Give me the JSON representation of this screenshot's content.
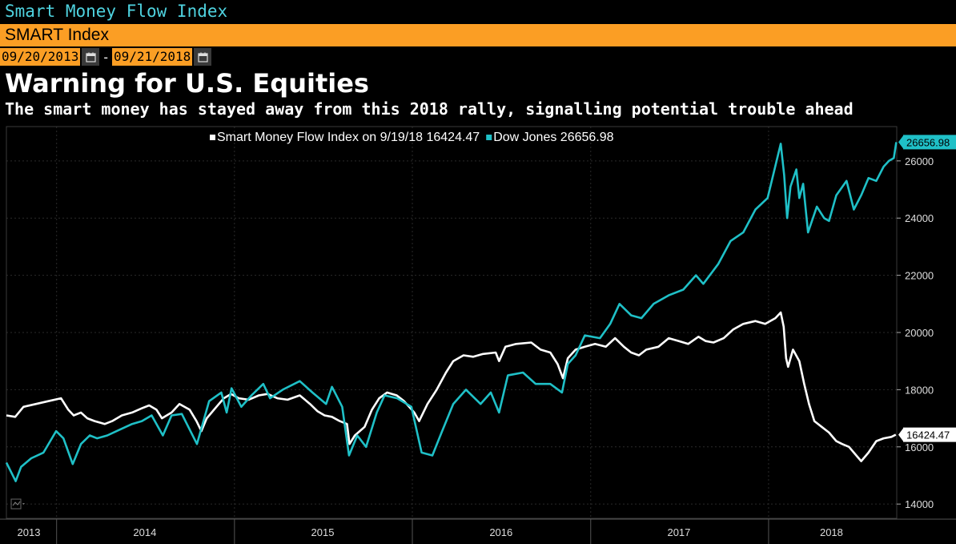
{
  "window": {
    "title": "Smart Money Flow Index"
  },
  "security": {
    "label": "SMART Index"
  },
  "date_range": {
    "start": "09/20/2013",
    "separator": "-",
    "end": "09/21/2018"
  },
  "headline": "Warning for U.S. Equities",
  "subhead": "The smart money has stayed away from this 2018 rally, signalling potential trouble ahead",
  "colors": {
    "background": "#000000",
    "smart": "#ffffff",
    "dow": "#1fc0c7",
    "accent": "#fb9e24",
    "grid": "#2a2a2a"
  },
  "chart_data": {
    "type": "line",
    "title": "",
    "xlabel": "",
    "ylabel": "",
    "ylim": [
      13500,
      27200
    ],
    "xlim": [
      "2013-09-20",
      "2018-09-21"
    ],
    "yticks": [
      14000,
      16000,
      18000,
      20000,
      22000,
      24000,
      26000
    ],
    "ytick_labels": [
      "14000",
      "16000",
      "18000",
      "20000",
      "22000",
      "24000",
      "26000"
    ],
    "year_labels": [
      {
        "label": "2013",
        "date": "2013-11-05"
      },
      {
        "label": "2014",
        "date": "2014-07-01"
      },
      {
        "label": "2015",
        "date": "2015-07-01"
      },
      {
        "label": "2016",
        "date": "2016-07-01"
      },
      {
        "label": "2017",
        "date": "2017-07-01"
      },
      {
        "label": "2018",
        "date": "2018-05-10"
      }
    ],
    "year_boundaries": [
      "2014-01-01",
      "2015-01-01",
      "2016-01-01",
      "2017-01-01",
      "2018-01-01"
    ],
    "grid": true,
    "legend": {
      "placement": "top-center",
      "entries": [
        {
          "text": "Smart Money Flow Index  on 9/19/18 16424.47",
          "color": "#ffffff"
        },
        {
          "text": "Dow Jones 26656.98",
          "color": "#1fc0c7"
        }
      ]
    },
    "last_value_labels": [
      {
        "series": "Dow Jones",
        "text": "26656.98",
        "value": 26656.98
      },
      {
        "series": "Smart Money Flow Index",
        "text": "16424.47",
        "value": 16424.47
      }
    ],
    "series": [
      {
        "name": "Smart Money Flow Index",
        "color": "#ffffff",
        "points": [
          [
            "2013-09-20",
            17100
          ],
          [
            "2013-10-08",
            17050
          ],
          [
            "2013-10-25",
            17400
          ],
          [
            "2013-11-20",
            17500
          ],
          [
            "2013-12-15",
            17600
          ],
          [
            "2014-01-10",
            17700
          ],
          [
            "2014-01-25",
            17300
          ],
          [
            "2014-02-05",
            17100
          ],
          [
            "2014-02-20",
            17200
          ],
          [
            "2014-03-05",
            17000
          ],
          [
            "2014-03-20",
            16900
          ],
          [
            "2014-04-10",
            16800
          ],
          [
            "2014-04-25",
            16900
          ],
          [
            "2014-05-15",
            17100
          ],
          [
            "2014-06-05",
            17200
          ],
          [
            "2014-06-25",
            17350
          ],
          [
            "2014-07-10",
            17450
          ],
          [
            "2014-07-25",
            17300
          ],
          [
            "2014-08-05",
            17000
          ],
          [
            "2014-08-25",
            17200
          ],
          [
            "2014-09-10",
            17500
          ],
          [
            "2014-10-01",
            17300
          ],
          [
            "2014-10-15",
            16900
          ],
          [
            "2014-10-25",
            16550
          ],
          [
            "2014-11-05",
            17000
          ],
          [
            "2014-11-25",
            17400
          ],
          [
            "2014-12-10",
            17700
          ],
          [
            "2014-12-25",
            17850
          ],
          [
            "2015-01-10",
            17700
          ],
          [
            "2015-01-30",
            17650
          ],
          [
            "2015-02-20",
            17800
          ],
          [
            "2015-03-10",
            17850
          ],
          [
            "2015-03-30",
            17700
          ],
          [
            "2015-04-20",
            17650
          ],
          [
            "2015-05-15",
            17800
          ],
          [
            "2015-06-05",
            17500
          ],
          [
            "2015-06-20",
            17250
          ],
          [
            "2015-07-05",
            17100
          ],
          [
            "2015-07-20",
            17050
          ],
          [
            "2015-08-05",
            16900
          ],
          [
            "2015-08-20",
            16800
          ],
          [
            "2015-08-25",
            16100
          ],
          [
            "2015-09-05",
            16400
          ],
          [
            "2015-09-25",
            16700
          ],
          [
            "2015-10-10",
            17300
          ],
          [
            "2015-10-25",
            17700
          ],
          [
            "2015-11-10",
            17900
          ],
          [
            "2015-11-30",
            17800
          ],
          [
            "2015-12-15",
            17600
          ],
          [
            "2016-01-05",
            17200
          ],
          [
            "2016-01-15",
            16900
          ],
          [
            "2016-02-01",
            17500
          ],
          [
            "2016-02-20",
            18000
          ],
          [
            "2016-03-10",
            18600
          ],
          [
            "2016-03-25",
            19000
          ],
          [
            "2016-04-15",
            19200
          ],
          [
            "2016-05-05",
            19150
          ],
          [
            "2016-05-25",
            19250
          ],
          [
            "2016-06-20",
            19300
          ],
          [
            "2016-06-27",
            19000
          ],
          [
            "2016-07-10",
            19500
          ],
          [
            "2016-08-01",
            19600
          ],
          [
            "2016-09-01",
            19650
          ],
          [
            "2016-09-20",
            19400
          ],
          [
            "2016-10-10",
            19300
          ],
          [
            "2016-10-25",
            18900
          ],
          [
            "2016-11-05",
            18400
          ],
          [
            "2016-11-15",
            19100
          ],
          [
            "2016-12-01",
            19400
          ],
          [
            "2016-12-20",
            19500
          ],
          [
            "2017-01-10",
            19600
          ],
          [
            "2017-02-01",
            19500
          ],
          [
            "2017-02-20",
            19800
          ],
          [
            "2017-03-10",
            19500
          ],
          [
            "2017-03-25",
            19300
          ],
          [
            "2017-04-10",
            19200
          ],
          [
            "2017-04-25",
            19400
          ],
          [
            "2017-05-20",
            19500
          ],
          [
            "2017-06-10",
            19800
          ],
          [
            "2017-07-01",
            19700
          ],
          [
            "2017-07-20",
            19600
          ],
          [
            "2017-08-10",
            19850
          ],
          [
            "2017-08-25",
            19700
          ],
          [
            "2017-09-10",
            19650
          ],
          [
            "2017-10-01",
            19800
          ],
          [
            "2017-10-20",
            20100
          ],
          [
            "2017-11-10",
            20300
          ],
          [
            "2017-12-05",
            20400
          ],
          [
            "2017-12-25",
            20300
          ],
          [
            "2018-01-15",
            20500
          ],
          [
            "2018-01-26",
            20700
          ],
          [
            "2018-02-01",
            20200
          ],
          [
            "2018-02-06",
            19100
          ],
          [
            "2018-02-10",
            18800
          ],
          [
            "2018-02-20",
            19400
          ],
          [
            "2018-03-05",
            19000
          ],
          [
            "2018-03-15",
            18200
          ],
          [
            "2018-03-25",
            17500
          ],
          [
            "2018-04-05",
            16900
          ],
          [
            "2018-04-20",
            16700
          ],
          [
            "2018-05-05",
            16500
          ],
          [
            "2018-05-20",
            16200
          ],
          [
            "2018-06-01",
            16100
          ],
          [
            "2018-06-15",
            16000
          ],
          [
            "2018-06-30",
            15700
          ],
          [
            "2018-07-10",
            15500
          ],
          [
            "2018-07-25",
            15800
          ],
          [
            "2018-08-10",
            16200
          ],
          [
            "2018-08-25",
            16300
          ],
          [
            "2018-09-10",
            16350
          ],
          [
            "2018-09-19",
            16424.47
          ]
        ]
      },
      {
        "name": "Dow Jones",
        "color": "#1fc0c7",
        "points": [
          [
            "2013-09-20",
            15450
          ],
          [
            "2013-10-09",
            14800
          ],
          [
            "2013-10-20",
            15300
          ],
          [
            "2013-11-10",
            15600
          ],
          [
            "2013-12-05",
            15800
          ],
          [
            "2013-12-31",
            16550
          ],
          [
            "2014-01-15",
            16300
          ],
          [
            "2014-02-03",
            15400
          ],
          [
            "2014-02-20",
            16100
          ],
          [
            "2014-03-10",
            16400
          ],
          [
            "2014-03-25",
            16300
          ],
          [
            "2014-04-15",
            16400
          ],
          [
            "2014-05-10",
            16600
          ],
          [
            "2014-06-05",
            16800
          ],
          [
            "2014-06-25",
            16900
          ],
          [
            "2014-07-15",
            17100
          ],
          [
            "2014-08-07",
            16400
          ],
          [
            "2014-08-25",
            17100
          ],
          [
            "2014-09-15",
            17150
          ],
          [
            "2014-10-16",
            16100
          ],
          [
            "2014-11-10",
            17600
          ],
          [
            "2014-12-05",
            17900
          ],
          [
            "2014-12-16",
            17200
          ],
          [
            "2014-12-26",
            18050
          ],
          [
            "2015-01-15",
            17400
          ],
          [
            "2015-02-05",
            17800
          ],
          [
            "2015-03-01",
            18200
          ],
          [
            "2015-03-15",
            17700
          ],
          [
            "2015-04-10",
            18000
          ],
          [
            "2015-05-15",
            18300
          ],
          [
            "2015-06-10",
            17900
          ],
          [
            "2015-07-08",
            17500
          ],
          [
            "2015-07-20",
            18100
          ],
          [
            "2015-08-10",
            17400
          ],
          [
            "2015-08-24",
            15700
          ],
          [
            "2015-09-10",
            16400
          ],
          [
            "2015-09-28",
            16000
          ],
          [
            "2015-10-20",
            17200
          ],
          [
            "2015-11-05",
            17800
          ],
          [
            "2015-12-01",
            17700
          ],
          [
            "2015-12-30",
            17400
          ],
          [
            "2016-01-20",
            15800
          ],
          [
            "2016-02-11",
            15700
          ],
          [
            "2016-03-01",
            16500
          ],
          [
            "2016-03-25",
            17500
          ],
          [
            "2016-04-20",
            18000
          ],
          [
            "2016-05-20",
            17500
          ],
          [
            "2016-06-10",
            17900
          ],
          [
            "2016-06-27",
            17200
          ],
          [
            "2016-07-15",
            18500
          ],
          [
            "2016-08-15",
            18600
          ],
          [
            "2016-09-10",
            18200
          ],
          [
            "2016-10-10",
            18200
          ],
          [
            "2016-11-03",
            17900
          ],
          [
            "2016-11-15",
            18900
          ],
          [
            "2016-12-01",
            19200
          ],
          [
            "2016-12-20",
            19900
          ],
          [
            "2017-01-20",
            19800
          ],
          [
            "2017-02-10",
            20300
          ],
          [
            "2017-03-01",
            21000
          ],
          [
            "2017-03-25",
            20600
          ],
          [
            "2017-04-15",
            20500
          ],
          [
            "2017-05-10",
            21000
          ],
          [
            "2017-06-10",
            21300
          ],
          [
            "2017-07-10",
            21500
          ],
          [
            "2017-08-05",
            22000
          ],
          [
            "2017-08-20",
            21700
          ],
          [
            "2017-09-20",
            22400
          ],
          [
            "2017-10-15",
            23200
          ],
          [
            "2017-11-10",
            23500
          ],
          [
            "2017-12-05",
            24300
          ],
          [
            "2017-12-30",
            24700
          ],
          [
            "2018-01-26",
            26600
          ],
          [
            "2018-02-02",
            25500
          ],
          [
            "2018-02-08",
            24000
          ],
          [
            "2018-02-15",
            25100
          ],
          [
            "2018-02-27",
            25700
          ],
          [
            "2018-03-05",
            24700
          ],
          [
            "2018-03-13",
            25200
          ],
          [
            "2018-03-23",
            23500
          ],
          [
            "2018-04-10",
            24400
          ],
          [
            "2018-04-25",
            24000
          ],
          [
            "2018-05-05",
            23900
          ],
          [
            "2018-05-20",
            24800
          ],
          [
            "2018-06-10",
            25300
          ],
          [
            "2018-06-25",
            24300
          ],
          [
            "2018-07-10",
            24800
          ],
          [
            "2018-07-25",
            25400
          ],
          [
            "2018-08-10",
            25300
          ],
          [
            "2018-08-25",
            25800
          ],
          [
            "2018-09-05",
            26000
          ],
          [
            "2018-09-15",
            26100
          ],
          [
            "2018-09-20",
            26656.98
          ]
        ]
      }
    ]
  }
}
